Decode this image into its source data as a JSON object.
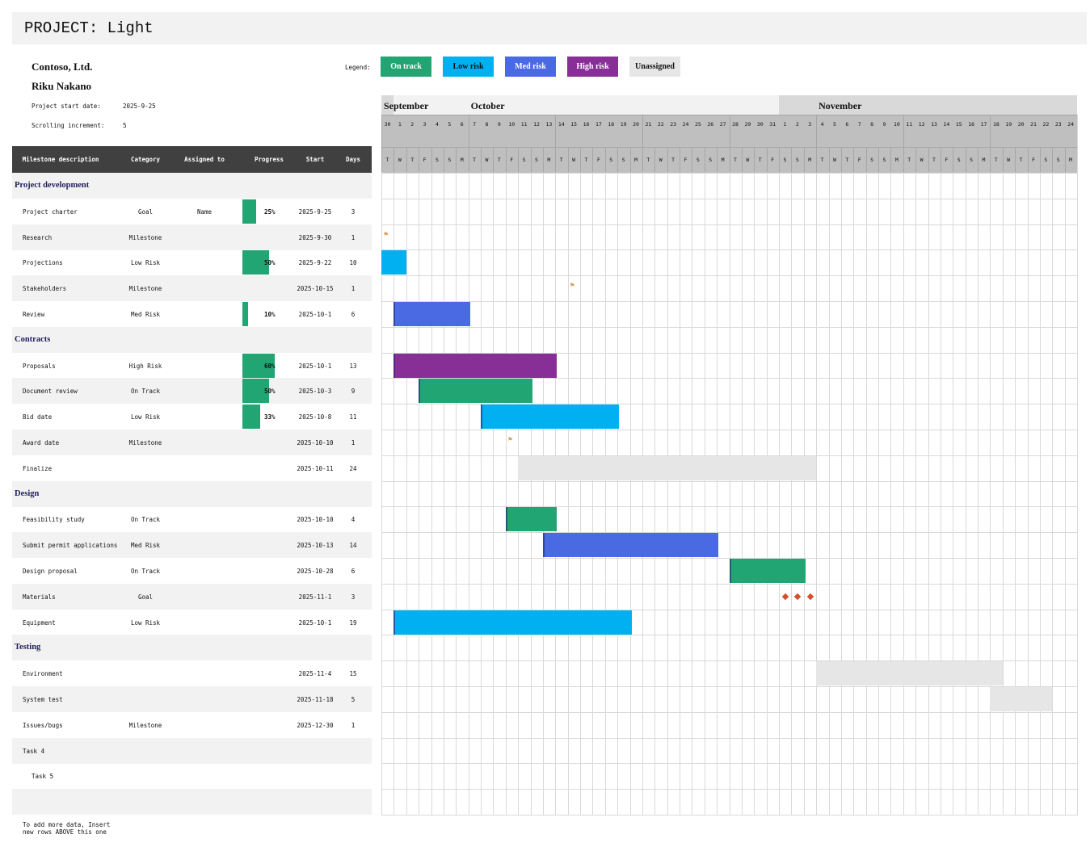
{
  "title": "PROJECT: Light",
  "company": "Contoso, Ltd.",
  "manager": "Riku Nakano",
  "project_start_label": "Project start date:",
  "project_start": "2025-9-25",
  "scroll_label": "Scrolling increment:",
  "scroll_value": "5",
  "legend": {
    "label": "Legend:",
    "items": [
      {
        "label": "On track",
        "color": "#21a573",
        "text_color": "#ffffff"
      },
      {
        "label": "Low risk",
        "color": "#00b0f0",
        "text_color": "#111111"
      },
      {
        "label": "Med risk",
        "color": "#4a6ae3",
        "text_color": "#ffffff"
      },
      {
        "label": "High risk",
        "color": "#872f96",
        "text_color": "#ffffff"
      },
      {
        "label": "Unassigned",
        "color": "#e6e6e6",
        "text_color": "#111111"
      }
    ]
  },
  "columns": [
    "Milestone description",
    "Category",
    "Assigned to",
    "Progress",
    "Start",
    "Days"
  ],
  "rows": [
    {
      "type": "section",
      "desc": "Project development"
    },
    {
      "desc": "Project charter",
      "category": "Goal",
      "assigned": "Name",
      "progress": 25,
      "progress_label": "25%",
      "start": "2025-9-25",
      "days": "3"
    },
    {
      "desc": "Research",
      "category": "Milestone",
      "start": "2025-9-30",
      "days": "1",
      "marker": "flag"
    },
    {
      "desc": "Projections",
      "category": "Low Risk",
      "progress": 50,
      "progress_label": "50%",
      "start": "2025-9-22",
      "days": "10",
      "bar": "Low risk"
    },
    {
      "desc": "Stakeholders",
      "category": "Milestone",
      "start": "2025-10-15",
      "days": "1",
      "marker": "flag"
    },
    {
      "desc": "Review",
      "category": "Med Risk",
      "progress": 10,
      "progress_label": "10%",
      "start": "2025-10-1",
      "days": "6",
      "bar": "Med risk"
    },
    {
      "type": "section",
      "desc": "Contracts"
    },
    {
      "desc": "Proposals",
      "category": "High Risk",
      "progress": 60,
      "progress_label": "60%",
      "start": "2025-10-1",
      "days": "13",
      "bar": "High risk"
    },
    {
      "desc": "Document review",
      "category": "On Track",
      "progress": 50,
      "progress_label": "50%",
      "start": "2025-10-3",
      "days": "9",
      "bar": "On track"
    },
    {
      "desc": "Bid date",
      "category": "Low Risk",
      "progress": 33,
      "progress_label": "33%",
      "start": "2025-10-8",
      "days": "11",
      "bar": "Low risk"
    },
    {
      "desc": "Award date",
      "category": "Milestone",
      "start": "2025-10-10",
      "days": "1",
      "marker": "flag"
    },
    {
      "desc": "Finalize",
      "start": "2025-10-11",
      "days": "24",
      "bar": "Unassigned"
    },
    {
      "type": "section",
      "desc": "Design"
    },
    {
      "desc": "Feasibility study",
      "category": "On Track",
      "start": "2025-10-10",
      "days": "4",
      "bar": "On track"
    },
    {
      "desc": "Submit permit applications",
      "category": "Med Risk",
      "start": "2025-10-13",
      "days": "14",
      "bar": "Med risk"
    },
    {
      "desc": "Design proposal",
      "category": "On Track",
      "start": "2025-10-28",
      "days": "6",
      "bar": "On track"
    },
    {
      "desc": "Materials",
      "category": "Goal",
      "start": "2025-11-1",
      "days": "3",
      "marker": "diamond"
    },
    {
      "desc": "Equipment",
      "category": "Low Risk",
      "start": "2025-10-1",
      "days": "19",
      "bar": "Low risk"
    },
    {
      "type": "section",
      "desc": "Testing"
    },
    {
      "desc": "Environment",
      "start": "2025-11-4",
      "days": "15",
      "bar": "Unassigned"
    },
    {
      "desc": "System test",
      "start": "2025-11-18",
      "days": "5",
      "bar": "Unassigned"
    },
    {
      "desc": "Issues/bugs",
      "category": "Milestone",
      "start": "2025-12-30",
      "days": "1"
    },
    {
      "desc": "Task 4"
    },
    {
      "desc": "Task 5",
      "indent": true
    },
    {
      "desc": ""
    }
  ],
  "footer_note_1": "To add more data, Insert",
  "footer_note_2": "new rows ABOVE this one",
  "timeline": {
    "months": [
      "September",
      "October",
      "November"
    ],
    "days": [
      "30",
      "1",
      "2",
      "3",
      "4",
      "5",
      "6",
      "7",
      "8",
      "9",
      "10",
      "11",
      "12",
      "13",
      "14",
      "15",
      "16",
      "17",
      "18",
      "19",
      "20",
      "21",
      "22",
      "23",
      "24",
      "25",
      "26",
      "27",
      "28",
      "29",
      "30",
      "31",
      "1",
      "2",
      "3",
      "4",
      "5",
      "6",
      "7",
      "8",
      "9",
      "10",
      "11",
      "12",
      "13",
      "14",
      "15",
      "16",
      "17",
      "18",
      "19",
      "20",
      "21",
      "22",
      "23",
      "24"
    ],
    "weekday_letters": [
      "T",
      "W",
      "T",
      "F",
      "S",
      "S",
      "M"
    ],
    "marker_colors": {
      "flag": "#d4a257",
      "diamond": "#d4512a"
    }
  }
}
